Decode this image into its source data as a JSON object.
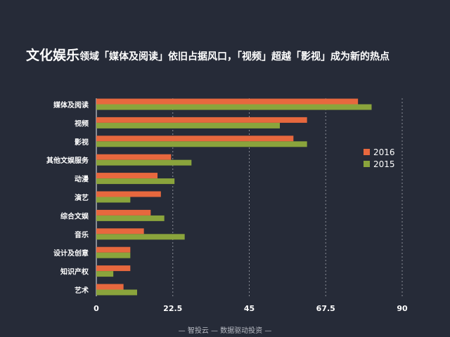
{
  "title": {
    "lead": "文化娱乐",
    "rest": "领域「媒体及阅读」依旧占据风口，「视频」超越「影视」成为新的热点"
  },
  "footer": "— 智投云 — 数据驱动投资 —",
  "colors": {
    "background": "#262b38",
    "series_2016": "#e7683e",
    "series_2015": "#8aa43c",
    "grid": "#8a8d96"
  },
  "chart_data": {
    "type": "bar",
    "orientation": "horizontal",
    "categories": [
      "媒体及阅读",
      "视频",
      "影视",
      "其他文娱服务",
      "动漫",
      "演艺",
      "综合文娱",
      "音乐",
      "设计及创意",
      "知识产权",
      "艺术"
    ],
    "series": [
      {
        "name": "2016",
        "values": [
          77,
          62,
          58,
          22,
          18,
          19,
          16,
          14,
          10,
          10,
          8
        ]
      },
      {
        "name": "2015",
        "values": [
          81,
          54,
          62,
          28,
          23,
          10,
          20,
          26,
          10,
          5,
          12
        ]
      }
    ],
    "xticks": [
      "0",
      "22.5",
      "45",
      "67.5",
      "90"
    ],
    "xtick_values": [
      0,
      22.5,
      45,
      67.5,
      90
    ],
    "xlim": [
      0,
      90
    ],
    "grid": "vertical dotted",
    "legend": "right"
  }
}
